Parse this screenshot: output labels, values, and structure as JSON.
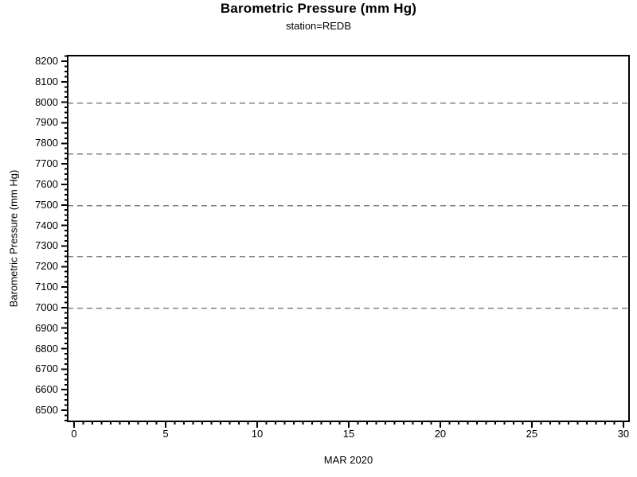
{
  "chart_data": {
    "type": "line",
    "title": "Barometric Pressure (mm Hg)",
    "subtitle": "station=REDB",
    "xlabel": "MAR 2020",
    "ylabel": "Barometric Pressure (mm Hg)",
    "x_axis": {
      "range": [
        -0.35,
        30.31
      ],
      "ticks_major": [
        0,
        5,
        10,
        15,
        20,
        25,
        30
      ],
      "tick_labels": [
        "0",
        "5",
        "10",
        "15",
        "20",
        "25",
        "30"
      ],
      "minor_step": 0.5
    },
    "y_axis": {
      "range": [
        6446,
        8227
      ],
      "ticks_major": [
        6500,
        6600,
        6700,
        6800,
        6900,
        7000,
        7100,
        7200,
        7300,
        7400,
        7500,
        7600,
        7700,
        7800,
        7900,
        8000,
        8100,
        8200
      ],
      "tick_labels": [
        "6500",
        "6600",
        "6700",
        "6800",
        "6900",
        "7000",
        "7100",
        "7200",
        "7300",
        "7400",
        "7500",
        "7600",
        "7700",
        "7800",
        "7900",
        "8000",
        "8100",
        "8200"
      ],
      "minor_step": 25
    },
    "reference_lines": {
      "y_values": [
        7000,
        7250,
        7500,
        7750,
        8000
      ],
      "style": "dashed",
      "color": "#808080"
    },
    "series": [],
    "legend": "none",
    "frame": true,
    "frame_color": "#000000",
    "background_color": "#ffffff"
  }
}
